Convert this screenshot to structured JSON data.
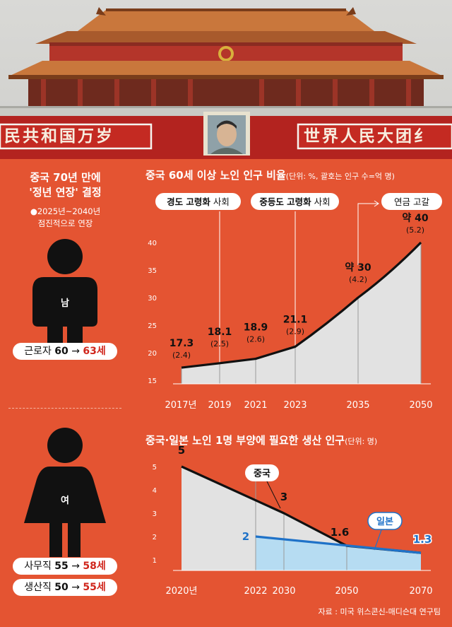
{
  "banner": {
    "left_slogan": "民共和国万岁",
    "right_slogan": "世界人民大团纟"
  },
  "left_panel": {
    "title_line1": "중국 70년 만에",
    "title_line2": "'정년 연장' 결정",
    "note_line1": "●2025년~2040년",
    "note_line2": "점진적으로 연장",
    "male": {
      "label": "남",
      "pill_prefix": "근로자",
      "from": "60",
      "arrow": "→",
      "to": "63세"
    },
    "female": {
      "label": "여",
      "office_prefix": "사무직",
      "office_from": "55",
      "office_to": "58세",
      "production_prefix": "생산직",
      "production_from": "50",
      "production_to": "55세",
      "arrow": "→"
    }
  },
  "chart1": {
    "title": "중국 60세 이상 노인 인구 비율",
    "unit": "(단위: %, 괄호는 인구 수=억 명)",
    "callouts": [
      {
        "bold": "경도 고령화",
        "rest": " 사회"
      },
      {
        "bold": "중등도 고령화",
        "rest": " 사회"
      },
      {
        "bold": "",
        "rest": "연금 고갈"
      }
    ]
  },
  "chart2": {
    "title": "중국·일본 노인 1명 부양에 필요한 생산 인구",
    "unit": "(단위: 명)",
    "china_label": "중국",
    "japan_label": "일본"
  },
  "source": "자료 : 미국 위스콘신-매디슨대 연구팀",
  "colors": {
    "background": "#e45432",
    "area_fill": "#e2e2e2",
    "japan_blue": "#1f72c8",
    "japan_fill": "#b6dcf2",
    "accent_red": "#d0261c"
  },
  "chart_data": [
    {
      "type": "area",
      "title": "중국 60세 이상 노인 인구 비율",
      "x": [
        "2017년",
        "2019",
        "2021",
        "2023",
        "2035",
        "2050"
      ],
      "y_ticks": [
        15,
        20,
        25,
        30,
        35,
        40
      ],
      "ylim": [
        15,
        40
      ],
      "series": [
        {
          "values": [
            17.3,
            18.1,
            18.9,
            21.1,
            30,
            40
          ],
          "labels": [
            "17.3",
            "18.1",
            "18.9",
            "21.1",
            "약 30",
            "약 40"
          ],
          "sublabels": [
            "(2.4)",
            "(2.5)",
            "(2.6)",
            "(2.9)",
            "(4.2)",
            "(5.2)"
          ]
        }
      ]
    },
    {
      "type": "area",
      "title": "중국·일본 노인 1명 부양에 필요한 생산 인구",
      "x": [
        "2020년",
        "2022",
        "2030",
        "2050",
        "2070"
      ],
      "y_ticks": [
        1,
        2,
        3,
        4,
        5
      ],
      "ylim": [
        1,
        5
      ],
      "series": [
        {
          "name": "중국",
          "points": [
            [
              2020,
              5
            ],
            [
              2030,
              3
            ],
            [
              2050,
              1.6
            ],
            [
              2070,
              1.3
            ]
          ],
          "labels": [
            "5",
            "3",
            "1.6",
            "1.3"
          ]
        },
        {
          "name": "일본",
          "points": [
            [
              2022,
              2
            ],
            [
              2070,
              1.3
            ]
          ],
          "labels": [
            "2",
            "1.3"
          ]
        }
      ]
    }
  ]
}
